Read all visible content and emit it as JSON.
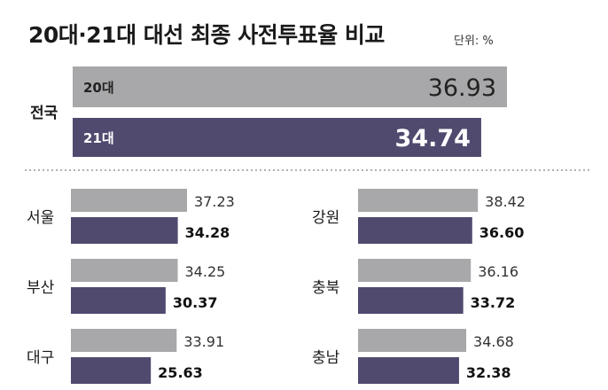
{
  "title": "20대·21대 대선 최종 사전투표율 비교",
  "unit_label": "단위: %",
  "colors": {
    "gray": "#a8a8aa",
    "purple": "#4f4a6e",
    "divider": "#999999"
  },
  "chart_data": {
    "type": "bar",
    "title": "20대·21대 대선 최종 사전투표율 비교",
    "unit": "단위: %",
    "series": [
      {
        "name": "20대",
        "color": "#a8a8aa"
      },
      {
        "name": "21대",
        "color": "#4f4a6e"
      }
    ],
    "national": {
      "label": "전국",
      "values": [
        {
          "series": "20대",
          "value": 36.93,
          "display": "36.93"
        },
        {
          "series": "21대",
          "value": 34.74,
          "display": "34.74"
        }
      ]
    },
    "regions": [
      {
        "name": "서울",
        "v20": 37.23,
        "v20_label": "37.23",
        "v21": 34.28,
        "v21_label": "34.28"
      },
      {
        "name": "부산",
        "v20": 34.25,
        "v20_label": "34.25",
        "v21": 30.37,
        "v21_label": "30.37"
      },
      {
        "name": "대구",
        "v20": 33.91,
        "v20_label": "33.91",
        "v21": 25.63,
        "v21_label": "25.63"
      },
      {
        "name": "강원",
        "v20": 38.42,
        "v20_label": "38.42",
        "v21": 36.6,
        "v21_label": "36.60"
      },
      {
        "name": "충북",
        "v20": 36.16,
        "v20_label": "36.16",
        "v21": 33.72,
        "v21_label": "33.72"
      },
      {
        "name": "충남",
        "v20": 34.68,
        "v20_label": "34.68",
        "v21": 32.38,
        "v21_label": "32.38"
      }
    ]
  }
}
